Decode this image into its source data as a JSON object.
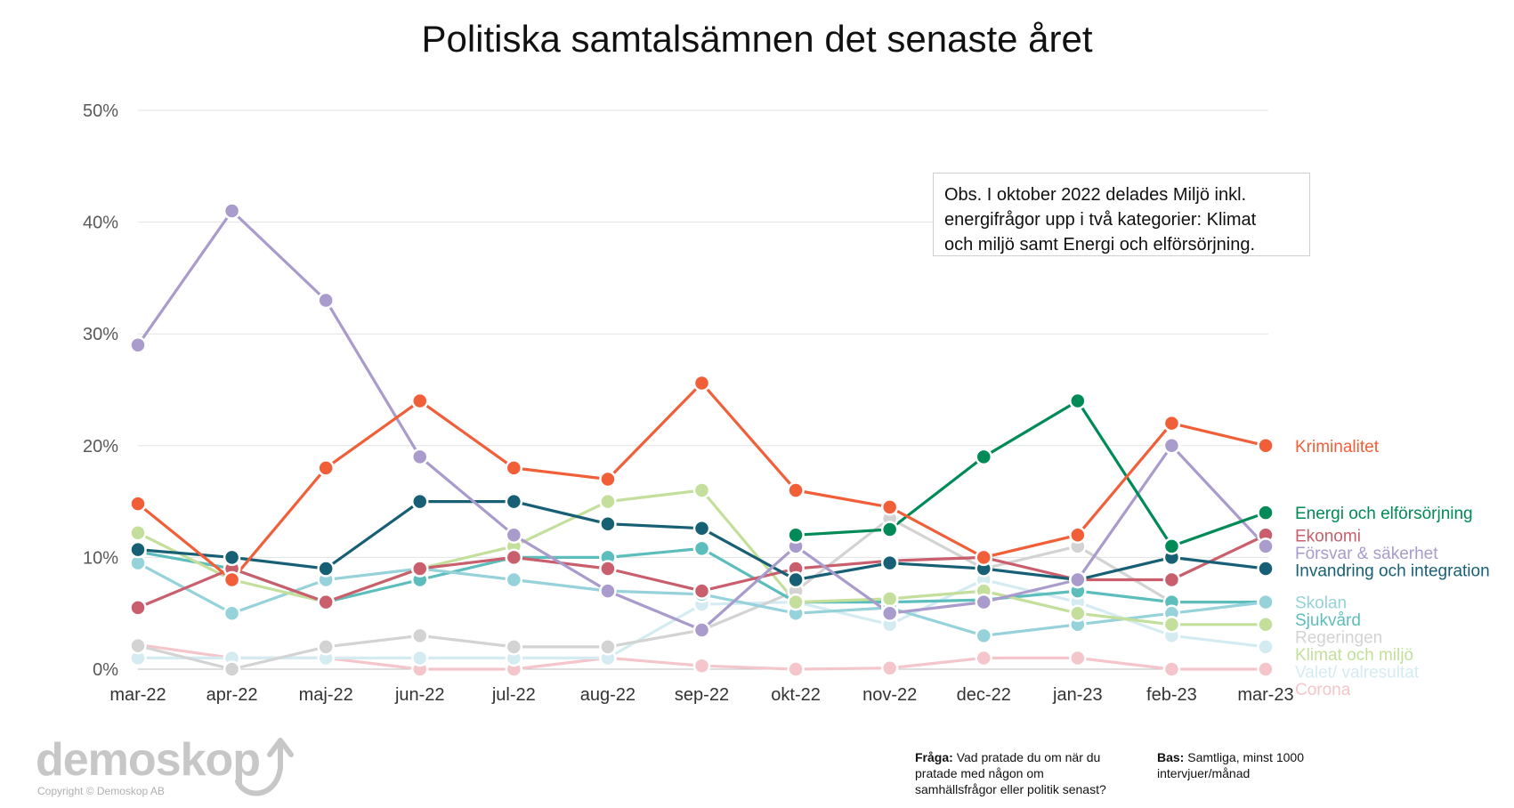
{
  "chart_data": {
    "type": "line",
    "title": "Politiska samtalsämnen det senaste året",
    "categories": [
      "mar-22",
      "apr-22",
      "maj-22",
      "jun-22",
      "jul-22",
      "aug-22",
      "sep-22",
      "okt-22",
      "nov-22",
      "dec-22",
      "jan-23",
      "feb-23",
      "mar-23"
    ],
    "y_ticks": [
      "0%",
      "10%",
      "20%",
      "30%",
      "40%",
      "50%"
    ],
    "ylim": [
      0,
      50
    ],
    "grid": true,
    "legend_placement": "right",
    "series": [
      {
        "name": "Corona",
        "color": "#f4c6cb",
        "values": [
          2.2,
          1,
          1,
          0,
          0,
          1,
          0.3,
          0,
          0.1,
          1,
          1,
          0,
          0
        ]
      },
      {
        "name": "Valet/ valresultat",
        "color": "#d4ecf1",
        "values": [
          1,
          1,
          1,
          1,
          1,
          1,
          5.8,
          6,
          4,
          8,
          6,
          3,
          2
        ]
      },
      {
        "name": "Regeringen",
        "color": "#d3d3d3",
        "values": [
          2.1,
          0,
          2,
          3,
          2,
          2,
          3.5,
          7,
          13.5,
          9,
          11,
          6,
          6
        ]
      },
      {
        "name": "Sjukvård",
        "color": "#5cbdbd",
        "values": [
          10.5,
          9,
          6,
          8,
          10,
          10,
          10.8,
          6,
          6,
          6.2,
          7,
          6,
          6
        ]
      },
      {
        "name": "Skolan",
        "color": "#96d2da",
        "values": [
          9.5,
          5,
          8,
          9,
          8,
          7,
          6.7,
          5,
          5.5,
          3,
          4,
          5,
          6
        ]
      },
      {
        "name": "Klimat och miljö",
        "color": "#c3df9b",
        "values": [
          12.2,
          8,
          6,
          9,
          11,
          15,
          16,
          6,
          6.3,
          7,
          5,
          4,
          4
        ]
      },
      {
        "name": "Ekonomi",
        "color": "#c95f6c",
        "values": [
          5.5,
          9,
          6,
          9,
          10,
          9,
          7,
          9,
          9.7,
          10,
          8,
          8,
          12
        ]
      },
      {
        "name": "Invandring och integration",
        "color": "#175f74",
        "values": [
          10.7,
          10,
          9,
          15,
          15,
          13,
          12.6,
          8,
          9.5,
          9,
          8,
          10,
          9
        ]
      },
      {
        "name": "Försvar & säkerhet",
        "color": "#a99bcc",
        "values": [
          29,
          41,
          33,
          19,
          12,
          7,
          3.5,
          11,
          5,
          6,
          8,
          20,
          11
        ]
      },
      {
        "name": "Energi och elförsörjning",
        "color": "#008a57",
        "values": [
          null,
          null,
          null,
          null,
          null,
          null,
          null,
          12,
          12.5,
          19,
          24,
          11,
          14
        ]
      },
      {
        "name": "Kriminalitet",
        "color": "#f05f38",
        "values": [
          14.8,
          8,
          18,
          24,
          18,
          17,
          25.6,
          16,
          14.5,
          10,
          12,
          22,
          20
        ]
      }
    ],
    "legend_order": [
      "Kriminalitet",
      "Energi och elförsörjning",
      "Ekonomi",
      "Försvar & säkerhet",
      "Invandring och integration",
      "Skolan",
      "Sjukvård",
      "Regeringen",
      "Klimat och miljö",
      "Valet/ valresultat",
      "Corona"
    ]
  },
  "note": {
    "line1": "Obs. I oktober 2022 delades Miljö inkl.",
    "line2": "energifrågor upp i två kategorier: Klimat",
    "line3": "och miljö samt Energi och elförsörjning."
  },
  "footer": {
    "logo_text": "demoskop",
    "copyright": "Copyright © Demoskop AB",
    "question_label": "Fråga:",
    "question_text": "Vad pratade du om när du pratade med någon om samhällsfrågor eller politik senast?",
    "base_label": "Bas:",
    "base_text": "Samtliga, minst 1000 intervjuer/månad"
  }
}
